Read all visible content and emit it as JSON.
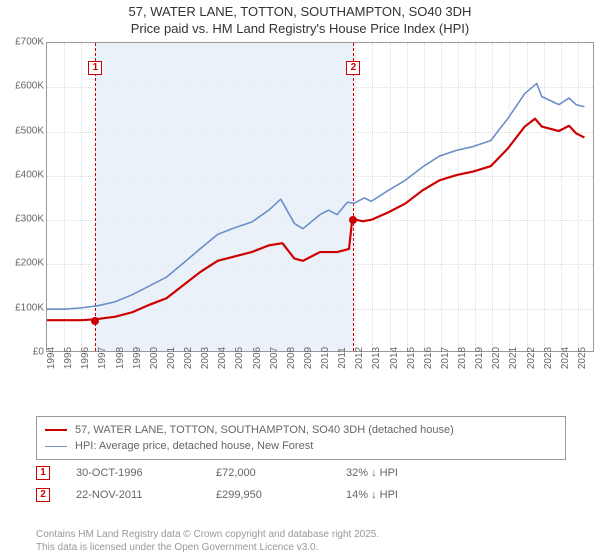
{
  "title": {
    "line1": "57, WATER LANE, TOTTON, SOUTHAMPTON, SO40 3DH",
    "line2": "Price paid vs. HM Land Registry's House Price Index (HPI)"
  },
  "chart": {
    "type": "line",
    "background_color": "#ffffff",
    "border_color": "#999999",
    "grid_color": "#dddddd",
    "shade_color": "#e8eef7",
    "marker_color": "#cc0000",
    "x_axis": {
      "min_year": 1994,
      "max_year": 2026,
      "ticks": [
        1994,
        1995,
        1996,
        1997,
        1998,
        1999,
        2000,
        2001,
        2002,
        2003,
        2004,
        2005,
        2006,
        2007,
        2008,
        2009,
        2010,
        2011,
        2012,
        2013,
        2014,
        2015,
        2016,
        2017,
        2018,
        2019,
        2020,
        2021,
        2022,
        2023,
        2024,
        2025
      ],
      "label_fontsize": 10,
      "label_color": "#666666"
    },
    "y_axis": {
      "min": 0,
      "max": 700000,
      "ticks": [
        0,
        100000,
        200000,
        300000,
        400000,
        500000,
        600000,
        700000
      ],
      "tick_labels": [
        "£0",
        "£100K",
        "£200K",
        "£300K",
        "£400K",
        "£500K",
        "£600K",
        "£700K"
      ],
      "label_fontsize": 10,
      "label_color": "#666666"
    },
    "shade_range": {
      "start_year": 1996.83,
      "end_year": 2011.89
    },
    "markers": [
      {
        "id": "1",
        "x_year": 1996.83,
        "y_value": 72000,
        "box_top": 18
      },
      {
        "id": "2",
        "x_year": 2011.89,
        "y_value": 299950,
        "box_top": 18
      }
    ],
    "series": [
      {
        "name": "price_paid",
        "color": "#cc0000",
        "line_width": 2.2,
        "points": [
          [
            1994,
            70000
          ],
          [
            1996,
            70000
          ],
          [
            1996.83,
            72000
          ],
          [
            1998,
            78000
          ],
          [
            1999,
            88000
          ],
          [
            2000,
            105000
          ],
          [
            2001,
            120000
          ],
          [
            2002,
            150000
          ],
          [
            2003,
            180000
          ],
          [
            2004,
            205000
          ],
          [
            2005,
            215000
          ],
          [
            2006,
            225000
          ],
          [
            2007,
            240000
          ],
          [
            2007.8,
            245000
          ],
          [
            2008.5,
            210000
          ],
          [
            2009,
            205000
          ],
          [
            2010,
            225000
          ],
          [
            2011,
            225000
          ],
          [
            2011.7,
            232000
          ],
          [
            2011.89,
            299950
          ],
          [
            2012.5,
            295000
          ],
          [
            2013,
            298000
          ],
          [
            2014,
            315000
          ],
          [
            2015,
            335000
          ],
          [
            2016,
            365000
          ],
          [
            2017,
            388000
          ],
          [
            2018,
            400000
          ],
          [
            2019,
            408000
          ],
          [
            2020,
            420000
          ],
          [
            2021,
            460000
          ],
          [
            2022,
            510000
          ],
          [
            2022.6,
            528000
          ],
          [
            2023,
            510000
          ],
          [
            2024,
            500000
          ],
          [
            2024.6,
            512000
          ],
          [
            2025,
            495000
          ],
          [
            2025.5,
            485000
          ]
        ]
      },
      {
        "name": "hpi",
        "color": "#6b8fc9",
        "line_width": 1.6,
        "points": [
          [
            1994,
            95000
          ],
          [
            1995,
            95000
          ],
          [
            1996,
            98000
          ],
          [
            1997,
            103000
          ],
          [
            1998,
            112000
          ],
          [
            1999,
            128000
          ],
          [
            2000,
            148000
          ],
          [
            2001,
            168000
          ],
          [
            2002,
            200000
          ],
          [
            2003,
            233000
          ],
          [
            2004,
            265000
          ],
          [
            2005,
            280000
          ],
          [
            2006,
            293000
          ],
          [
            2007,
            320000
          ],
          [
            2007.7,
            345000
          ],
          [
            2008.5,
            290000
          ],
          [
            2009,
            278000
          ],
          [
            2010,
            310000
          ],
          [
            2010.5,
            320000
          ],
          [
            2011,
            310000
          ],
          [
            2011.6,
            338000
          ],
          [
            2012,
            336000
          ],
          [
            2012.6,
            348000
          ],
          [
            2013,
            340000
          ],
          [
            2014,
            365000
          ],
          [
            2015,
            388000
          ],
          [
            2016,
            418000
          ],
          [
            2017,
            443000
          ],
          [
            2018,
            456000
          ],
          [
            2019,
            465000
          ],
          [
            2020,
            478000
          ],
          [
            2021,
            528000
          ],
          [
            2022,
            585000
          ],
          [
            2022.7,
            608000
          ],
          [
            2023,
            578000
          ],
          [
            2024,
            560000
          ],
          [
            2024.6,
            575000
          ],
          [
            2025,
            560000
          ],
          [
            2025.5,
            555000
          ]
        ]
      }
    ]
  },
  "legend": {
    "items": [
      {
        "color": "#cc0000",
        "width": 2.2,
        "label": "57, WATER LANE, TOTTON, SOUTHAMPTON, SO40 3DH (detached house)"
      },
      {
        "color": "#6b8fc9",
        "width": 1.6,
        "label": "HPI: Average price, detached house, New Forest"
      }
    ]
  },
  "transactions": [
    {
      "id": "1",
      "date": "30-OCT-1996",
      "price": "£72,000",
      "diff": "32% ↓ HPI"
    },
    {
      "id": "2",
      "date": "22-NOV-2011",
      "price": "£299,950",
      "diff": "14% ↓ HPI"
    }
  ],
  "credit": {
    "line1": "Contains HM Land Registry data © Crown copyright and database right 2025.",
    "line2": "This data is licensed under the Open Government Licence v3.0."
  },
  "styling": {
    "title_fontsize": 13,
    "body_fontsize": 11,
    "credit_fontsize": 10,
    "text_color": "#333333",
    "muted_color": "#666666",
    "credit_color": "#999999"
  }
}
